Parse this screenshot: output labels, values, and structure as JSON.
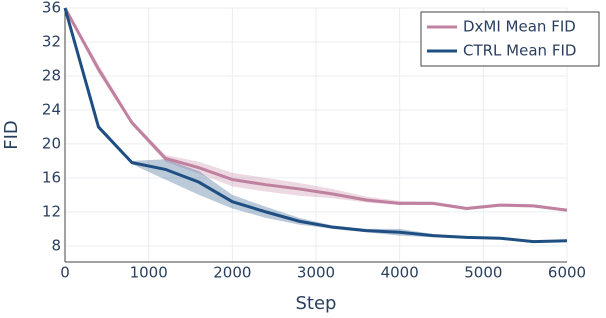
{
  "chart_data": {
    "type": "line",
    "x_label": "Step",
    "y_label": "FID",
    "x": [
      0,
      400,
      800,
      1200,
      1600,
      2000,
      2400,
      2800,
      3200,
      3600,
      4000,
      4400,
      4800,
      5200,
      5600,
      6000
    ],
    "series": [
      {
        "name": "DxMI Mean FID",
        "color": "#c0809f",
        "values": [
          36,
          28.8,
          22.5,
          18.3,
          17.2,
          15.8,
          15.2,
          14.7,
          14.1,
          13.4,
          13.0,
          13.0,
          12.4,
          12.8,
          12.7,
          12.2
        ],
        "lower": [
          35.8,
          28.3,
          22.2,
          17.9,
          16.5,
          15.0,
          14.4,
          13.9,
          13.6,
          13.1,
          12.8,
          12.8,
          12.2,
          12.6,
          12.5,
          12.0
        ],
        "upper": [
          36,
          29.4,
          22.8,
          18.7,
          17.9,
          16.6,
          16.0,
          15.4,
          14.7,
          13.8,
          13.3,
          13.2,
          12.6,
          13.0,
          12.9,
          12.4
        ]
      },
      {
        "name": "CTRL Mean FID",
        "color": "#1f4e82",
        "values": [
          36,
          22.0,
          17.8,
          17.0,
          15.5,
          13.2,
          12.0,
          10.9,
          10.2,
          9.8,
          9.6,
          9.2,
          9.0,
          8.9,
          8.5,
          8.6
        ],
        "lower": [
          35.8,
          21.7,
          17.6,
          15.8,
          14.0,
          12.4,
          11.3,
          10.5,
          10.0,
          9.6,
          9.2,
          9.0,
          8.9,
          8.8,
          8.4,
          8.5
        ],
        "upper": [
          36,
          22.3,
          18.0,
          18.2,
          16.8,
          14.0,
          12.6,
          11.3,
          10.4,
          10.0,
          10.0,
          9.4,
          9.1,
          9.0,
          8.6,
          8.7
        ]
      }
    ],
    "xlim": [
      0,
      6000
    ],
    "xticks": [
      0,
      1000,
      2000,
      3000,
      4000,
      5000,
      6000
    ],
    "ylim": [
      6.1,
      36
    ],
    "yticks": [
      8,
      12,
      16,
      20,
      24,
      28,
      32,
      36
    ],
    "grid": true,
    "legend": "top-right"
  }
}
